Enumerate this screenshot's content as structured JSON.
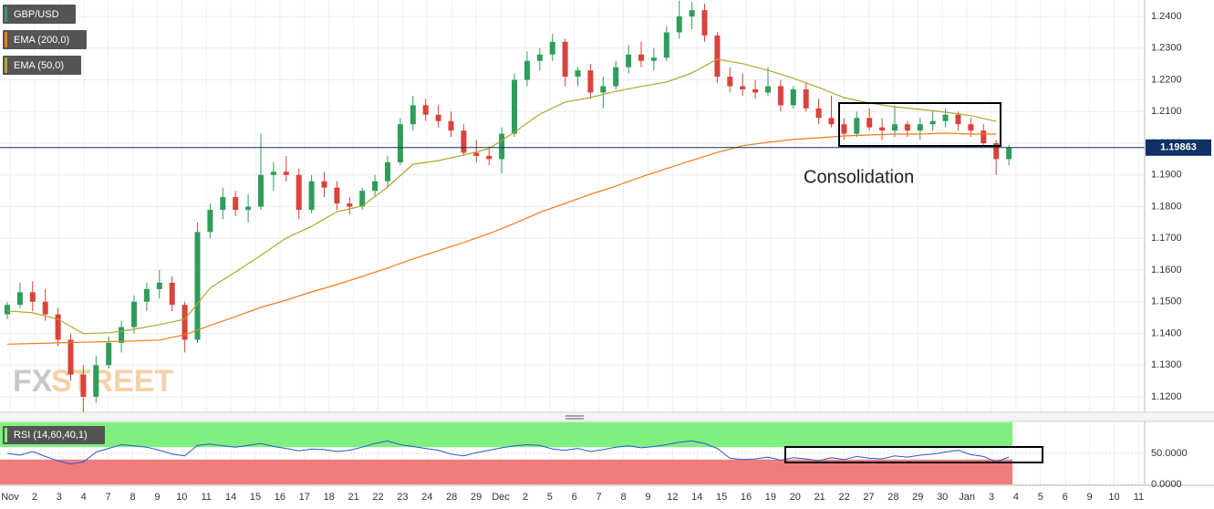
{
  "chart_data": {
    "type": "candlestick",
    "symbol": "GBP/USD",
    "symbol_color": "#3a8f8c",
    "color_up": "#2e9d5b",
    "color_down": "#d9433b",
    "open": [
      1.146,
      1.149,
      1.153,
      1.15,
      1.146,
      1.138,
      1.127,
      1.12,
      1.13,
      1.137,
      1.142,
      1.15,
      1.154,
      1.156,
      1.149,
      1.138,
      1.172,
      1.179,
      1.183,
      1.179,
      1.18,
      1.19,
      1.191,
      1.19,
      1.179,
      1.188,
      1.186,
      1.181,
      1.18,
      1.185,
      1.188,
      1.194,
      1.206,
      1.212,
      1.209,
      1.207,
      1.204,
      1.197,
      1.196,
      1.195,
      1.203,
      1.22,
      1.226,
      1.228,
      1.232,
      1.221,
      1.223,
      1.216,
      1.218,
      1.224,
      1.228,
      1.226,
      1.227,
      1.235,
      1.24,
      1.242,
      1.234,
      1.221,
      1.218,
      1.217,
      1.216,
      1.218,
      1.212,
      1.217,
      1.211,
      1.208,
      1.206,
      1.203,
      1.208,
      1.205,
      1.204,
      1.206,
      1.204,
      1.206,
      1.207,
      1.209,
      1.206,
      1.204,
      1.2,
      1.195
    ],
    "high": [
      1.15,
      1.156,
      1.1565,
      1.154,
      1.148,
      1.14,
      1.13,
      1.133,
      1.139,
      1.144,
      1.152,
      1.156,
      1.16,
      1.158,
      1.15,
      1.175,
      1.181,
      1.186,
      1.185,
      1.184,
      1.203,
      1.194,
      1.196,
      1.192,
      1.19,
      1.191,
      1.188,
      1.183,
      1.186,
      1.19,
      1.196,
      1.208,
      1.215,
      1.214,
      1.212,
      1.21,
      1.206,
      1.201,
      1.199,
      1.205,
      1.222,
      1.229,
      1.23,
      1.2345,
      1.233,
      1.224,
      1.225,
      1.221,
      1.226,
      1.231,
      1.232,
      1.23,
      1.237,
      1.245,
      1.2445,
      1.244,
      1.235,
      1.224,
      1.222,
      1.22,
      1.224,
      1.22,
      1.218,
      1.219,
      1.214,
      1.215,
      1.208,
      1.21,
      1.211,
      1.208,
      1.212,
      1.207,
      1.208,
      1.21,
      1.211,
      1.21,
      1.208,
      1.206,
      1.201,
      1.1995
    ],
    "low": [
      1.1445,
      1.148,
      1.147,
      1.144,
      1.136,
      1.125,
      1.115,
      1.118,
      1.129,
      1.134,
      1.14,
      1.147,
      1.151,
      1.147,
      1.134,
      1.137,
      1.17,
      1.176,
      1.177,
      1.175,
      1.179,
      1.185,
      1.188,
      1.176,
      1.178,
      1.183,
      1.179,
      1.1775,
      1.179,
      1.183,
      1.186,
      1.193,
      1.204,
      1.207,
      1.205,
      1.202,
      1.196,
      1.194,
      1.193,
      1.1905,
      1.202,
      1.218,
      1.223,
      1.226,
      1.218,
      1.218,
      1.214,
      1.211,
      1.217,
      1.222,
      1.224,
      1.223,
      1.226,
      1.233,
      1.236,
      1.232,
      1.219,
      1.216,
      1.215,
      1.214,
      1.215,
      1.21,
      1.211,
      1.21,
      1.206,
      1.205,
      1.201,
      1.202,
      1.204,
      1.201,
      1.202,
      1.202,
      1.201,
      1.204,
      1.205,
      1.204,
      1.202,
      1.199,
      1.19,
      1.193
    ],
    "close": [
      1.149,
      1.153,
      1.15,
      1.146,
      1.138,
      1.127,
      1.12,
      1.13,
      1.137,
      1.142,
      1.15,
      1.154,
      1.156,
      1.149,
      1.138,
      1.172,
      1.179,
      1.183,
      1.179,
      1.18,
      1.19,
      1.191,
      1.19,
      1.179,
      1.188,
      1.186,
      1.181,
      1.18,
      1.185,
      1.188,
      1.194,
      1.206,
      1.212,
      1.209,
      1.207,
      1.204,
      1.197,
      1.196,
      1.195,
      1.203,
      1.22,
      1.226,
      1.228,
      1.232,
      1.221,
      1.223,
      1.216,
      1.218,
      1.224,
      1.228,
      1.226,
      1.227,
      1.235,
      1.24,
      1.242,
      1.234,
      1.221,
      1.218,
      1.217,
      1.216,
      1.218,
      1.212,
      1.217,
      1.211,
      1.208,
      1.206,
      1.203,
      1.208,
      1.205,
      1.204,
      1.206,
      1.204,
      1.206,
      1.207,
      1.209,
      1.206,
      1.204,
      1.2,
      1.195,
      1.1986
    ],
    "series": [
      {
        "name": "EMA (200,0)",
        "color": "#f07d1a",
        "values": [
          1.1366,
          1.1368,
          1.137,
          1.1372,
          1.1374,
          1.1376,
          1.1379,
          1.1396,
          1.1425,
          1.1453,
          1.1482,
          1.1505,
          1.1531,
          1.1554,
          1.158,
          1.1606,
          1.1635,
          1.1661,
          1.1687,
          1.1715,
          1.1747,
          1.1782,
          1.181,
          1.1839,
          1.1865,
          1.1894,
          1.192,
          1.1946,
          1.1971,
          1.1992,
          1.2003,
          1.2012,
          1.2017,
          1.2023,
          1.2026,
          1.2029,
          1.2029,
          1.2032,
          1.2029,
          1.2029
        ]
      },
      {
        "name": "EMA (50,0)",
        "color": "#b5a42a",
        "values": [
          1.1471,
          1.1465,
          1.1445,
          1.1399,
          1.1402,
          1.1413,
          1.1428,
          1.1445,
          1.1543,
          1.1594,
          1.1646,
          1.1701,
          1.1738,
          1.1784,
          1.1802,
          1.1862,
          1.1934,
          1.1945,
          1.1963,
          1.1983,
          1.2035,
          1.2092,
          1.213,
          1.2144,
          1.2164,
          1.2179,
          1.2193,
          1.2222,
          1.2265,
          1.2251,
          1.223,
          1.2205,
          1.2176,
          1.2144,
          1.2127,
          1.2115,
          1.2107,
          1.2098,
          1.2087,
          1.2069
        ]
      }
    ],
    "ylim": [
      1.1151,
      1.2452
    ],
    "yticks": [
      {
        "value": 1.24,
        "label": "1.2400"
      },
      {
        "value": 1.23,
        "label": "1.2300"
      },
      {
        "value": 1.22,
        "label": "1.2200"
      },
      {
        "value": 1.21,
        "label": "1.2100"
      },
      {
        "value": 1.2,
        "label": "1.2000"
      },
      {
        "value": 1.19,
        "label": "1.1900"
      },
      {
        "value": 1.18,
        "label": "1.1800"
      },
      {
        "value": 1.17,
        "label": "1.1700"
      },
      {
        "value": 1.16,
        "label": "1.1600"
      },
      {
        "value": 1.15,
        "label": "1.1500"
      },
      {
        "value": 1.14,
        "label": "1.1400"
      },
      {
        "value": 1.13,
        "label": "1.1300"
      },
      {
        "value": 1.12,
        "label": "1.1200"
      }
    ],
    "last_price": 1.19863,
    "last_price_color": "#0f3264",
    "grid": true,
    "annotation": "Consolidation",
    "watermark": [
      "FX",
      "STREET"
    ],
    "xtick_labels": [
      "Nov",
      "2",
      "3",
      "4",
      "7",
      "8",
      "9",
      "10",
      "11",
      "14",
      "15",
      "16",
      "17",
      "18",
      "21",
      "22",
      "23",
      "24",
      "28",
      "29",
      "Dec",
      "2",
      "5",
      "6",
      "7",
      "8",
      "9",
      "12",
      "14",
      "15",
      "16",
      "19",
      "20",
      "21",
      "22",
      "27",
      "28",
      "29",
      "30",
      "Jan",
      "3",
      "4",
      "5",
      "6",
      "9",
      "10",
      "11"
    ],
    "rsi": {
      "name": "RSI (14,60,40,1)",
      "color": "#2a55d6",
      "upper": 60,
      "lower": 40,
      "upper_color": "#7ff07f",
      "lower_color": "#f07c7c",
      "ylim": [
        0,
        100
      ],
      "yticks": [
        {
          "value": 50,
          "label": "50.0000"
        },
        {
          "value": 0,
          "label": "0.0000"
        }
      ],
      "values": [
        50,
        47,
        53,
        45,
        38,
        33,
        36,
        52,
        58,
        64,
        62,
        60,
        55,
        49,
        46,
        63,
        65,
        62,
        60,
        63,
        66,
        61,
        58,
        54,
        57,
        56,
        53,
        55,
        60,
        66,
        70,
        64,
        61,
        58,
        55,
        49,
        46,
        51,
        55,
        59,
        62,
        64,
        63,
        57,
        55,
        58,
        53,
        56,
        60,
        62,
        59,
        61,
        64,
        68,
        70,
        66,
        58,
        42,
        40,
        41,
        44,
        39,
        43,
        41,
        38,
        43,
        40,
        45,
        42,
        41,
        46,
        44,
        47,
        49,
        52,
        55,
        48,
        45,
        36,
        44
      ]
    }
  }
}
